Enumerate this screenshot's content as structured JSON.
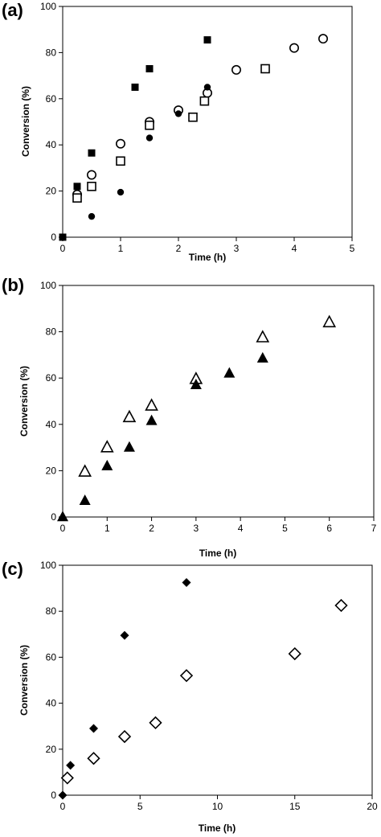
{
  "chart_data": [
    {
      "type": "scatter",
      "panel_label": "(a)",
      "xlabel": "Time (h)",
      "ylabel": "Conversion (%)",
      "xlim": [
        0,
        5
      ],
      "ylim": [
        0,
        100
      ],
      "xticks": [
        "0",
        "1",
        "2",
        "3",
        "4",
        "5"
      ],
      "yticks": [
        "0",
        "20",
        "40",
        "60",
        "80",
        "100"
      ],
      "grid": false,
      "series": [
        {
          "marker": "square-filled",
          "x": [
            0,
            0.25,
            0.5,
            1.25,
            1.5,
            2.5
          ],
          "y": [
            0,
            22,
            36.5,
            65,
            73,
            85.5
          ]
        },
        {
          "marker": "circle-open",
          "x": [
            0.25,
            0.5,
            1,
            1.5,
            2,
            2.5,
            3,
            4,
            4.5
          ],
          "y": [
            18.5,
            27,
            40.5,
            50,
            55,
            62.5,
            72.5,
            82,
            86
          ]
        },
        {
          "marker": "circle-filled",
          "x": [
            0.5,
            1,
            1.5,
            2,
            2.5
          ],
          "y": [
            9,
            19.5,
            43,
            53.5,
            65
          ]
        },
        {
          "marker": "square-open",
          "x": [
            0.25,
            0.5,
            1,
            1.5,
            2.25,
            2.45,
            3.5
          ],
          "y": [
            17,
            22,
            33,
            48.5,
            52,
            59,
            73
          ]
        }
      ]
    },
    {
      "type": "scatter",
      "panel_label": "(b)",
      "xlabel": "Time (h)",
      "ylabel": "Conversion  (%)",
      "xlim": [
        0,
        7
      ],
      "ylim": [
        0,
        100
      ],
      "xticks": [
        "0",
        "1",
        "2",
        "3",
        "4",
        "5",
        "6",
        "7"
      ],
      "yticks": [
        "0",
        "20",
        "40",
        "60",
        "80",
        "100"
      ],
      "grid": false,
      "series": [
        {
          "marker": "triangle-open",
          "x": [
            0.5,
            1,
            1.5,
            2,
            3,
            4.5,
            6
          ],
          "y": [
            19.5,
            30,
            43,
            48,
            59.5,
            77.5,
            84
          ]
        },
        {
          "marker": "triangle-filled",
          "x": [
            0,
            0.5,
            1,
            1.5,
            2,
            3,
            3.75,
            4.5
          ],
          "y": [
            0,
            7,
            22,
            30,
            41.5,
            57,
            62,
            68.5
          ]
        }
      ]
    },
    {
      "type": "scatter",
      "panel_label": "(c)",
      "xlabel": "Time (h)",
      "ylabel": "Conversion (%)",
      "xlim": [
        0,
        20
      ],
      "ylim": [
        0,
        100
      ],
      "xticks": [
        "0",
        "5",
        "10",
        "15",
        "20"
      ],
      "yticks": [
        "0",
        "20",
        "40",
        "60",
        "80",
        "100"
      ],
      "grid": false,
      "series": [
        {
          "marker": "diamond-filled",
          "x": [
            0,
            0.5,
            2,
            4,
            8
          ],
          "y": [
            0,
            13,
            29,
            69.5,
            92.5
          ]
        },
        {
          "marker": "diamond-open",
          "x": [
            0.3,
            2,
            4,
            6,
            8,
            15,
            18
          ],
          "y": [
            7.5,
            16,
            25.5,
            31.5,
            52,
            61.5,
            82.5
          ]
        }
      ]
    }
  ]
}
